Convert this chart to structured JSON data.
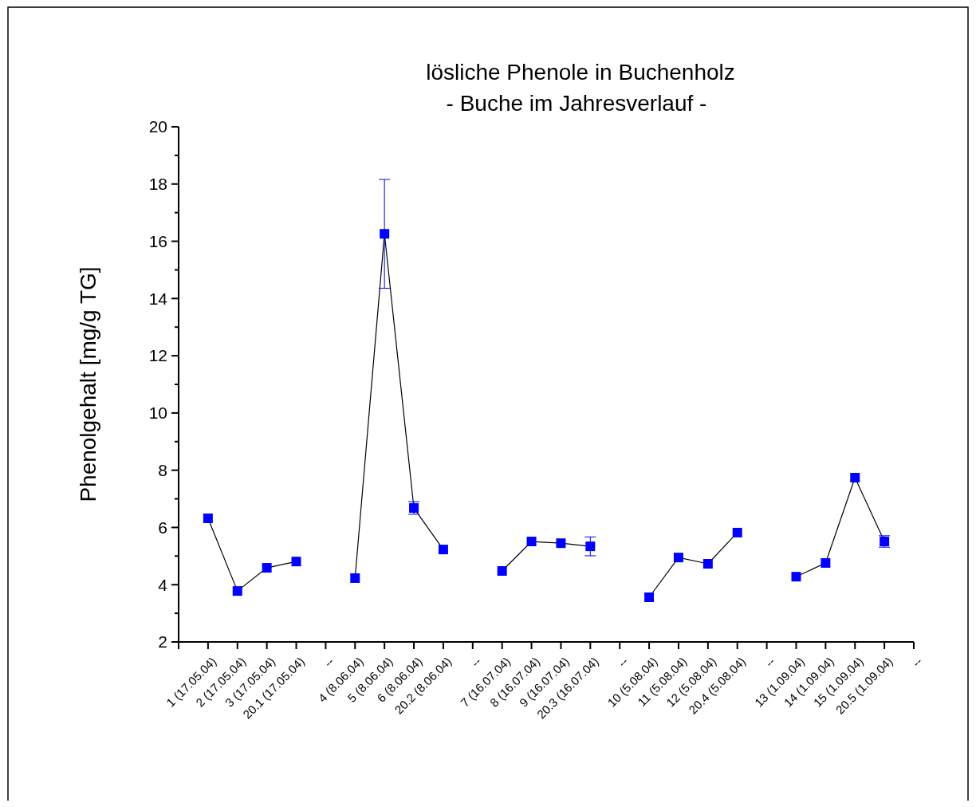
{
  "chart_data": {
    "type": "line",
    "title": "lösliche Phenole in Buchenholz",
    "subtitle": "- Buche im Jahresverlauf -",
    "ylabel": "Phenolgehalt [mg/g TG]",
    "categories": [
      "1 (17.05.04)",
      "2 (17.05.04)",
      "3 (17.05.04)",
      "20.1 (17.05.04)",
      "--",
      "4 (8.06.04)",
      "5 (8.06.04)",
      "6 (8.06.04)",
      "20.2 (8.06.04)",
      "--",
      "7 (16.07.04)",
      "8 (16.07.04)",
      "9 (16.07.04)",
      "20.3 (16.07.04)",
      "--",
      "10 (5.08.04)",
      "11 (5.08.04)",
      "12 (5.08.04)",
      "20.4 (5.08.04)",
      "--",
      "13 (1.09.04)",
      "14 (1.09.04)",
      "15 (1.09.04)",
      "20.5 (1.09.04)",
      "--"
    ],
    "series": [
      {
        "color": "#0000ff",
        "values": [
          6.32,
          3.78,
          4.59,
          4.81,
          null,
          4.23,
          16.26,
          6.68,
          5.23,
          null,
          4.48,
          5.51,
          5.45,
          5.34,
          null,
          3.56,
          4.95,
          4.73,
          5.82,
          null,
          4.28,
          4.76,
          7.74,
          5.51,
          null
        ],
        "errors": [
          null,
          null,
          null,
          null,
          null,
          null,
          1.9,
          0.22,
          null,
          null,
          null,
          null,
          null,
          0.33,
          null,
          null,
          null,
          null,
          null,
          null,
          null,
          null,
          null,
          0.2,
          null
        ]
      }
    ],
    "ylim": [
      2,
      20
    ],
    "yticks": [
      2,
      {
        "value": 3,
        "label": null
      },
      4,
      {
        "value": 5,
        "label": null
      },
      6,
      {
        "value": 7,
        "label": null
      },
      8,
      {
        "value": 9,
        "label": null
      },
      10,
      {
        "value": 11,
        "label": null
      },
      12,
      {
        "value": 13,
        "label": null
      },
      14,
      {
        "value": 15,
        "label": null
      },
      16,
      {
        "value": 17,
        "label": null
      },
      18,
      {
        "value": 19,
        "label": null
      },
      20
    ],
    "marker": "square",
    "grid": false
  }
}
